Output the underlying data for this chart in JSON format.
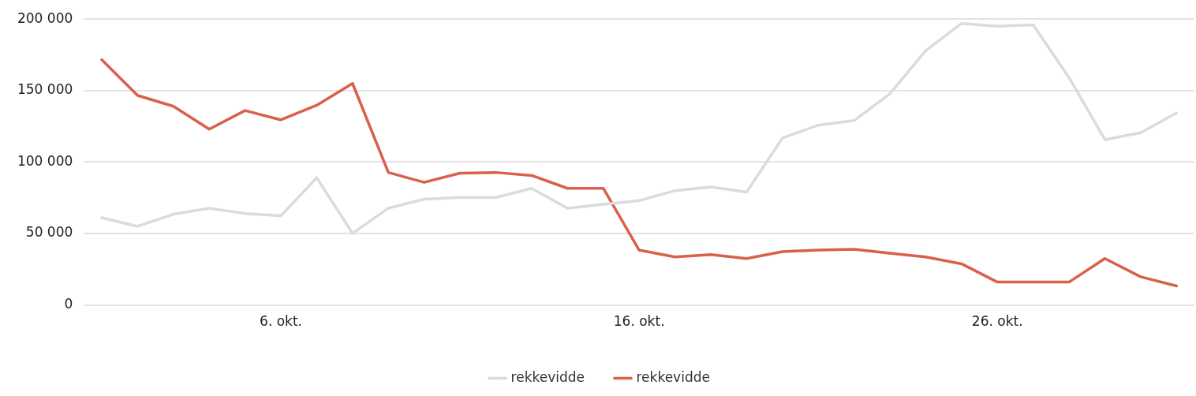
{
  "chart_data": {
    "type": "line",
    "categories": [
      null,
      null,
      null,
      null,
      null,
      "6. okt.",
      null,
      null,
      null,
      null,
      null,
      null,
      null,
      null,
      null,
      "16. okt.",
      null,
      null,
      null,
      null,
      null,
      null,
      null,
      null,
      null,
      "26. okt.",
      null,
      null,
      null,
      null,
      null
    ],
    "series": [
      {
        "name": "rekkevidde",
        "color": "#d9dbe0",
        "values": [
          61000,
          55000,
          63500,
          67700,
          64000,
          62400,
          89000,
          50100,
          67700,
          74000,
          75200,
          75200,
          81600,
          67700,
          70400,
          73000,
          80000,
          82600,
          79000,
          116800,
          125800,
          129000,
          147700,
          178000,
          197000,
          195000,
          196000,
          159000,
          115700,
          120500,
          134300
        ]
      },
      {
        "name": "rekkevidde",
        "color": "#d9604a",
        "values": [
          171600,
          146600,
          139000,
          123000,
          136000,
          129500,
          139700,
          155000,
          92700,
          85800,
          92200,
          92700,
          90600,
          81600,
          81600,
          38400,
          33600,
          35200,
          32500,
          37300,
          38400,
          38900,
          36200,
          33600,
          28800,
          16000,
          16000,
          16000,
          32500,
          19700,
          13300
        ]
      }
    ],
    "ylim": [
      0,
      200000
    ],
    "yticks": [
      {
        "value": 0,
        "label": "0"
      },
      {
        "value": 50000,
        "label": "50 000"
      },
      {
        "value": 100000,
        "label": "100 000"
      },
      {
        "value": 150000,
        "label": "150 000"
      },
      {
        "value": 200000,
        "label": "200 000"
      }
    ],
    "grid": "y",
    "legend": "bottom",
    "marker": "none",
    "line_style": "solid"
  }
}
